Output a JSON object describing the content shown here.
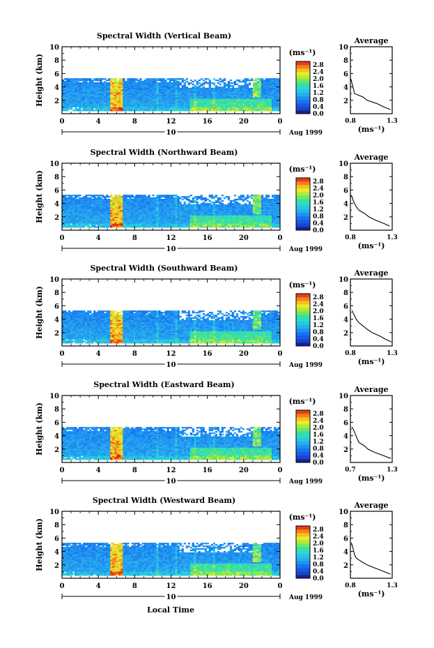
{
  "figure": {
    "xlabel": "Local Time",
    "ylabel": "Height (km)",
    "unit_label": "(ms⁻¹)",
    "date_label": "Aug 1999",
    "day_label": "10",
    "avg_title": "Average"
  },
  "chart_data": [
    {
      "type": "heatmap",
      "title": "Spectral Width (Vertical Beam)",
      "xlabel": "Local Time",
      "ylabel": "Height (km)",
      "x_ticks": [
        "0",
        "4",
        "8",
        "12",
        "16",
        "20",
        "0"
      ],
      "y_ticks": [
        "2",
        "4",
        "6",
        "8",
        "10"
      ],
      "xlim": [
        0,
        24
      ],
      "ylim": [
        0,
        10
      ],
      "data_top_km": 5.3,
      "colorbar": {
        "label": "(ms⁻¹)",
        "ticks": [
          "0.0",
          "0.4",
          "0.8",
          "1.2",
          "1.6",
          "2.0",
          "2.4",
          "2.8"
        ],
        "range": [
          0,
          3.0
        ]
      },
      "date": "Aug 1999",
      "day": "10",
      "average_profile": {
        "title": "Average",
        "xlabel": "(ms⁻¹)",
        "x_ticks": [
          "0.8",
          "1.3"
        ],
        "xlim": [
          0.8,
          1.3
        ],
        "y_ticks": [
          "2",
          "4",
          "6",
          "8",
          "10"
        ],
        "heights": [
          0.6,
          1.0,
          1.5,
          2.0,
          2.5,
          3.0,
          3.5,
          4.0,
          4.5,
          5.0,
          5.3
        ],
        "values": [
          1.28,
          1.2,
          1.12,
          1.0,
          0.95,
          0.85,
          0.84,
          0.83,
          0.82,
          0.81,
          0.8
        ]
      }
    },
    {
      "type": "heatmap",
      "title": "Spectral Width (Northward Beam)",
      "xlabel": "Local Time",
      "ylabel": "Height (km)",
      "x_ticks": [
        "0",
        "4",
        "8",
        "12",
        "16",
        "20",
        "0"
      ],
      "y_ticks": [
        "2",
        "4",
        "6",
        "8",
        "10"
      ],
      "xlim": [
        0,
        24
      ],
      "ylim": [
        0,
        10
      ],
      "data_top_km": 5.3,
      "colorbar": {
        "label": "(ms⁻¹)",
        "ticks": [
          "0.0",
          "0.4",
          "0.8",
          "1.2",
          "1.6",
          "2.0",
          "2.4",
          "2.8"
        ],
        "range": [
          0,
          3.0
        ]
      },
      "date": "Aug 1999",
      "day": "10",
      "average_profile": {
        "title": "Average",
        "xlabel": "(ms⁻¹)",
        "x_ticks": [
          "0.8",
          "1.3"
        ],
        "xlim": [
          0.8,
          1.3
        ],
        "y_ticks": [
          "2",
          "4",
          "6",
          "8",
          "10"
        ],
        "heights": [
          0.6,
          1.0,
          1.5,
          2.0,
          2.5,
          3.0,
          3.5,
          4.0,
          4.5,
          5.0,
          5.3
        ],
        "values": [
          1.27,
          1.2,
          1.1,
          1.02,
          0.97,
          0.9,
          0.87,
          0.85,
          0.83,
          0.82,
          0.8
        ]
      }
    },
    {
      "type": "heatmap",
      "title": "Spectral Width (Southward Beam)",
      "xlabel": "Local Time",
      "ylabel": "Height (km)",
      "x_ticks": [
        "0",
        "4",
        "8",
        "12",
        "16",
        "20",
        "0"
      ],
      "y_ticks": [
        "2",
        "4",
        "6",
        "8",
        "10"
      ],
      "xlim": [
        0,
        24
      ],
      "ylim": [
        0,
        10
      ],
      "data_top_km": 5.3,
      "colorbar": {
        "label": "(ms⁻¹)",
        "ticks": [
          "0.0",
          "0.4",
          "0.8",
          "1.2",
          "1.6",
          "2.0",
          "2.4",
          "2.8"
        ],
        "range": [
          0,
          3.0
        ]
      },
      "date": "Aug 1999",
      "day": "10",
      "average_profile": {
        "title": "Average",
        "xlabel": "(ms⁻¹)",
        "x_ticks": [
          "0.8",
          "1.3"
        ],
        "xlim": [
          0.8,
          1.3
        ],
        "y_ticks": [
          "2",
          "4",
          "6",
          "8",
          "10"
        ],
        "heights": [
          0.6,
          1.0,
          1.5,
          2.0,
          2.5,
          3.0,
          3.5,
          4.0,
          4.5,
          5.0,
          5.3
        ],
        "values": [
          1.29,
          1.22,
          1.15,
          1.06,
          1.0,
          0.95,
          0.9,
          0.87,
          0.85,
          0.83,
          0.82
        ]
      }
    },
    {
      "type": "heatmap",
      "title": "Spectral Width (Eastward Beam)",
      "xlabel": "Local Time",
      "ylabel": "Height (km)",
      "x_ticks": [
        "0",
        "4",
        "8",
        "12",
        "16",
        "20",
        "0"
      ],
      "y_ticks": [
        "2",
        "4",
        "6",
        "8",
        "10"
      ],
      "xlim": [
        0,
        24
      ],
      "ylim": [
        0,
        10
      ],
      "data_top_km": 5.3,
      "colorbar": {
        "label": "(ms⁻¹)",
        "ticks": [
          "0.0",
          "0.4",
          "0.8",
          "1.2",
          "1.6",
          "2.0",
          "2.4",
          "2.8"
        ],
        "range": [
          0,
          3.0
        ]
      },
      "date": "Aug 1999",
      "day": "10",
      "average_profile": {
        "title": "Average",
        "xlabel": "(ms⁻¹)",
        "x_ticks": [
          "0.7",
          "1.3"
        ],
        "xlim": [
          0.7,
          1.3
        ],
        "y_ticks": [
          "2",
          "4",
          "6",
          "8",
          "10"
        ],
        "heights": [
          0.6,
          1.0,
          1.5,
          2.0,
          2.5,
          3.0,
          3.5,
          4.0,
          4.5,
          5.0,
          5.3
        ],
        "values": [
          1.28,
          1.18,
          1.05,
          0.95,
          0.9,
          0.82,
          0.8,
          0.78,
          0.76,
          0.74,
          0.72
        ]
      }
    },
    {
      "type": "heatmap",
      "title": "Spectral Width (Westward Beam)",
      "xlabel": "Local Time",
      "ylabel": "Height (km)",
      "x_ticks": [
        "0",
        "4",
        "8",
        "12",
        "16",
        "20",
        "0"
      ],
      "y_ticks": [
        "2",
        "4",
        "6",
        "8",
        "10"
      ],
      "xlim": [
        0,
        24
      ],
      "ylim": [
        0,
        10
      ],
      "data_top_km": 5.3,
      "colorbar": {
        "label": "(ms⁻¹)",
        "ticks": [
          "0.0",
          "0.4",
          "0.8",
          "1.2",
          "1.6",
          "2.0",
          "2.4",
          "2.8"
        ],
        "range": [
          0,
          3.0
        ]
      },
      "date": "Aug 1999",
      "day": "10",
      "average_profile": {
        "title": "Average",
        "xlabel": "(ms⁻¹)",
        "x_ticks": [
          "0.8",
          "1.3"
        ],
        "xlim": [
          0.8,
          1.3
        ],
        "y_ticks": [
          "2",
          "4",
          "6",
          "8",
          "10"
        ],
        "heights": [
          0.6,
          1.0,
          1.5,
          2.0,
          2.5,
          3.0,
          3.5,
          4.0,
          4.5,
          5.0,
          5.3
        ],
        "values": [
          1.28,
          1.2,
          1.1,
          1.0,
          0.93,
          0.87,
          0.85,
          0.84,
          0.83,
          0.82,
          0.81
        ]
      }
    }
  ]
}
